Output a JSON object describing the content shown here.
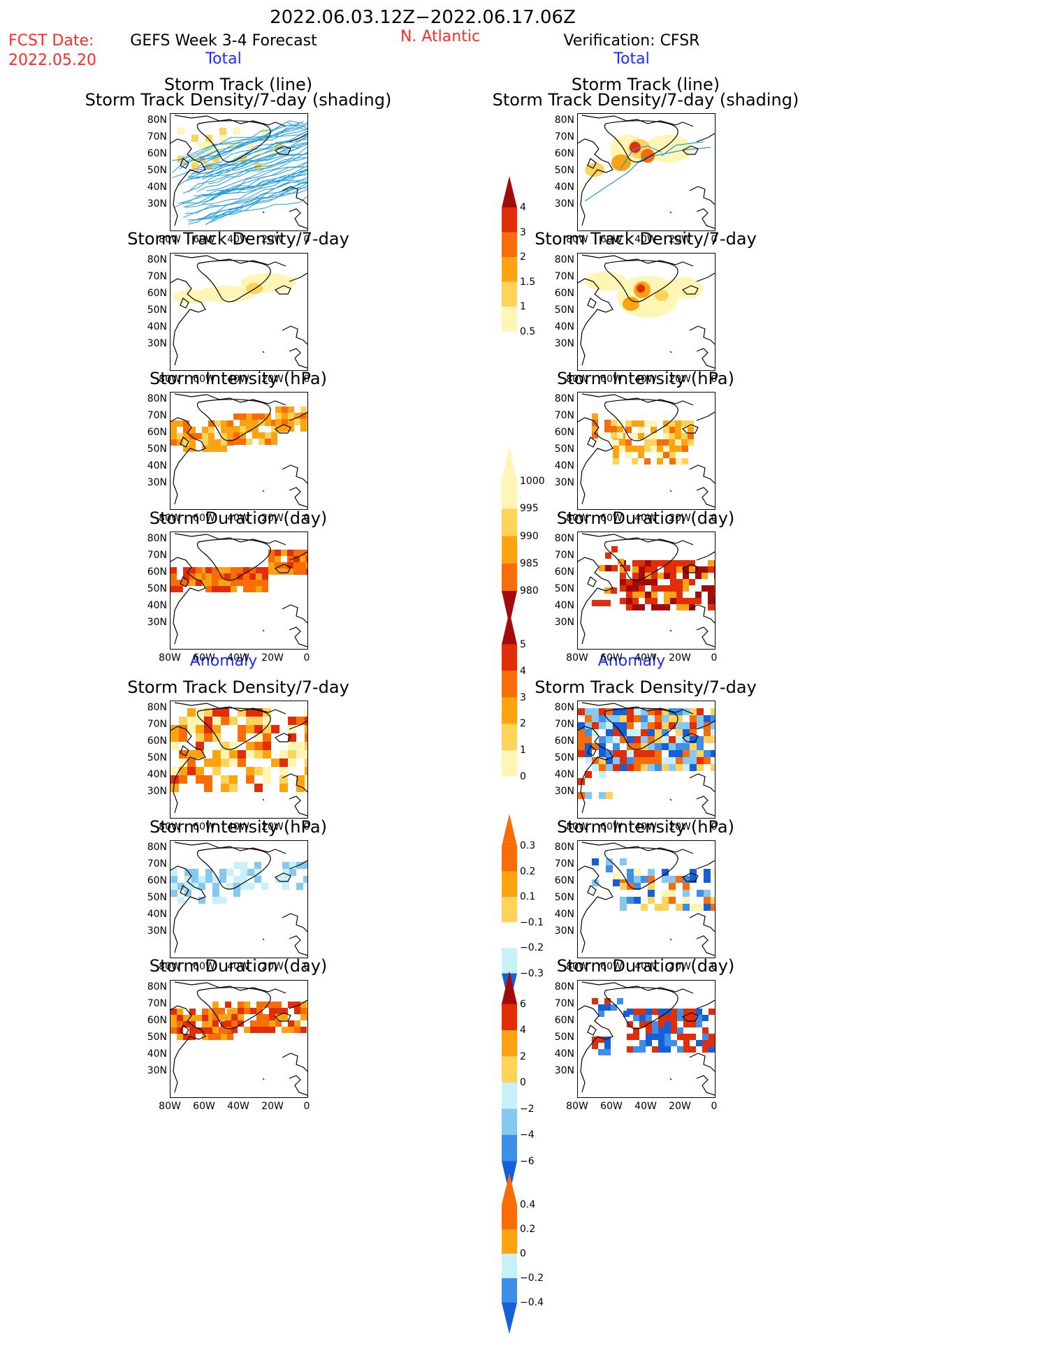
{
  "header": {
    "date_range": "2022.06.03.12Z−2022.06.17.06Z",
    "fcst_label": "FCST Date:",
    "fcst_date": "2022.05.20",
    "model_title": "GEFS Week 3-4 Forecast",
    "region": "N. Atlantic",
    "verification": "Verification: CFSR"
  },
  "sections": {
    "total_left": "Total",
    "total_right": "Total",
    "anomaly_left": "Anomaly",
    "anomaly_right": "Anomaly"
  },
  "panel_titles": {
    "track_line": "Storm Track (line)",
    "track_density_shading": "Storm Track Density/7-day (shading)",
    "track_density": "Storm Track Density/7-day",
    "intensity": "Storm Intensity (hPa)",
    "duration": "Storm Duration (day)"
  },
  "axes": {
    "lat_ticks": [
      "80N",
      "70N",
      "60N",
      "50N",
      "40N",
      "30N"
    ],
    "lon_ticks": [
      "80W",
      "60W",
      "40W",
      "20W",
      "0"
    ]
  },
  "colorbars": {
    "density_total": [
      "4",
      "3",
      "2",
      "1.5",
      "1",
      "0.5"
    ],
    "intensity_total": [
      "1000",
      "995",
      "990",
      "985",
      "980"
    ],
    "duration_total": [
      "5",
      "4",
      "3",
      "2",
      "1",
      "0"
    ],
    "density_anom": [
      "0.3",
      "0.2",
      "0.1",
      "−0.1",
      "−0.2",
      "−0.3"
    ],
    "intensity_anom": [
      "6",
      "4",
      "2",
      "0",
      "−2",
      "−4",
      "−6"
    ],
    "duration_anom": [
      "0.4",
      "0.2",
      "0",
      "−0.2",
      "−0.4"
    ]
  },
  "colors": {
    "title_red": "#ff2a2a",
    "section_blue": "#1f2bff",
    "track_blue": "#1e9bdc",
    "warm": [
      "#fff5b4",
      "#fdd35a",
      "#fca311",
      "#f96d09",
      "#e22d09",
      "#a30a0a"
    ],
    "cool": [
      "#c8f0f8",
      "#86c8f0",
      "#3d8fe8",
      "#1560d8"
    ]
  }
}
